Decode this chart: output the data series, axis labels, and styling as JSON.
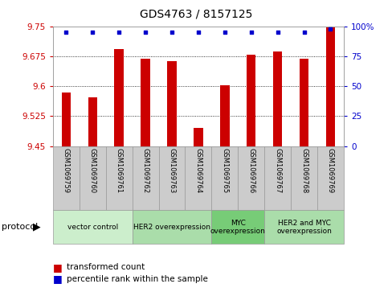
{
  "title": "GDS4763 / 8157125",
  "samples": [
    "GSM1069759",
    "GSM1069760",
    "GSM1069761",
    "GSM1069762",
    "GSM1069763",
    "GSM1069764",
    "GSM1069765",
    "GSM1069766",
    "GSM1069767",
    "GSM1069768",
    "GSM1069769"
  ],
  "bar_values": [
    9.585,
    9.572,
    9.693,
    9.668,
    9.663,
    9.495,
    9.603,
    9.678,
    9.687,
    9.668,
    9.748
  ],
  "percentile_values": [
    95,
    95,
    95,
    95,
    95,
    95,
    95,
    95,
    95,
    95,
    98
  ],
  "bar_color": "#cc0000",
  "percentile_color": "#0000cc",
  "ylim_left": [
    9.45,
    9.75
  ],
  "ylim_right": [
    0,
    100
  ],
  "yticks_left": [
    9.45,
    9.525,
    9.6,
    9.675,
    9.75
  ],
  "ytick_labels_left": [
    "9.45",
    "9.525",
    "9.6",
    "9.675",
    "9.75"
  ],
  "yticks_right": [
    0,
    25,
    50,
    75,
    100
  ],
  "ytick_labels_right": [
    "0",
    "25",
    "50",
    "75",
    "100%"
  ],
  "group_labels": [
    "vector control",
    "HER2 overexpression",
    "MYC\noverexpression",
    "HER2 and MYC\noverexpression"
  ],
  "group_colors": [
    "#cceecc",
    "#aaddaa",
    "#77cc77",
    "#aaddaa"
  ],
  "group_sample_counts": [
    3,
    3,
    2,
    3
  ],
  "protocol_label": "protocol",
  "legend_bar_label": "transformed count",
  "legend_pct_label": "percentile rank within the sample",
  "bar_color_legend": "#cc0000",
  "pct_color_legend": "#0000cc",
  "sample_box_color": "#cccccc",
  "gridline_color": "#000000",
  "tick_color_left": "#cc0000",
  "tick_color_right": "#0000cc",
  "bar_width": 0.35
}
